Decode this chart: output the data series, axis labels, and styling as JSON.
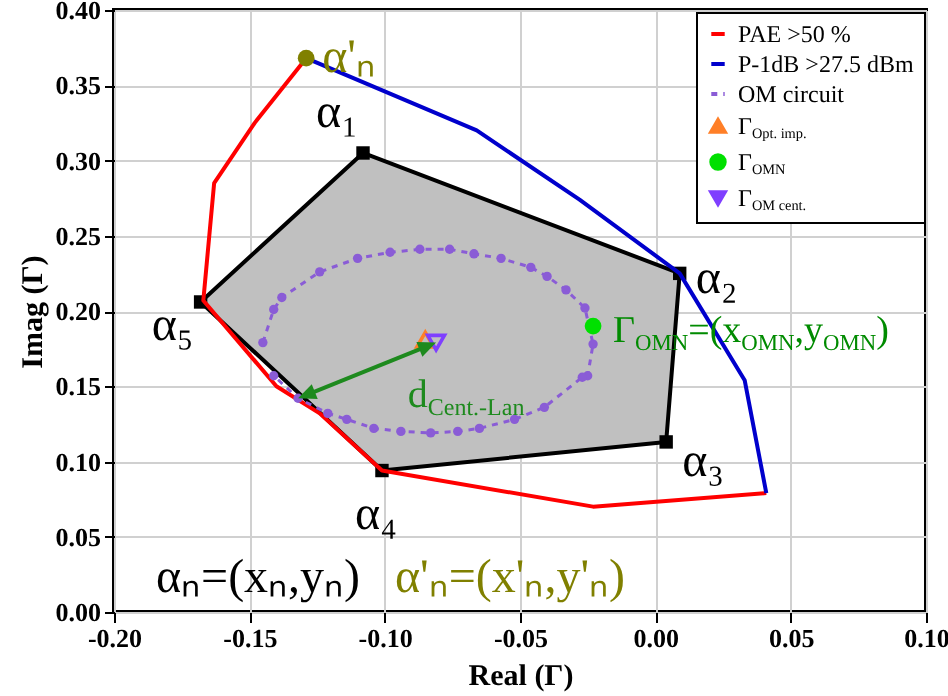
{
  "chart_data": {
    "type": "line",
    "xlabel": "Real (Γ)",
    "ylabel": "Imag (Γ)",
    "xlim": [
      -0.2,
      0.1
    ],
    "ylim": [
      0,
      0.4
    ],
    "xticks": [
      {
        "value": -0.2,
        "label": "-0.20"
      },
      {
        "value": -0.15,
        "label": "-0.15"
      },
      {
        "value": -0.1,
        "label": "-0.10"
      },
      {
        "value": -0.05,
        "label": "-0.05"
      },
      {
        "value": 0,
        "label": "0.00"
      },
      {
        "value": 0.05,
        "label": "0.05"
      },
      {
        "value": 0.1,
        "label": "0.10"
      }
    ],
    "yticks": [
      {
        "value": 0,
        "label": "0.00"
      },
      {
        "value": 0.05,
        "label": "0.05"
      },
      {
        "value": 0.1,
        "label": "0.10"
      },
      {
        "value": 0.15,
        "label": "0.15"
      },
      {
        "value": 0.2,
        "label": "0.20"
      },
      {
        "value": 0.25,
        "label": "0.25"
      },
      {
        "value": 0.3,
        "label": "0.30"
      },
      {
        "value": 0.35,
        "label": "0.35"
      },
      {
        "value": 0.4,
        "label": "0.40"
      }
    ],
    "grid": true,
    "legend": "top right",
    "series": [
      {
        "type": "area",
        "color": "#c0c0c0",
        "marker": "square",
        "x": [
          -0.108,
          0.009,
          0.004,
          -0.101,
          -0.168
        ],
        "values": [
          0.305,
          0.225,
          0.113,
          0.094,
          0.206
        ]
      },
      {
        "name": "PAE >50 %",
        "color": "#ff0000",
        "x": [
          -0.129,
          -0.148,
          -0.163,
          -0.167,
          -0.14,
          -0.124,
          -0.101,
          -0.023,
          0.041
        ],
        "values": [
          0.368,
          0.325,
          0.285,
          0.207,
          0.15,
          0.132,
          0.094,
          0.07,
          0.079
        ]
      },
      {
        "name": "P-1dB >27.5 dBm",
        "color": "#0000cc",
        "x": [
          -0.129,
          -0.066,
          -0.028,
          0.009,
          0.033,
          0.041
        ],
        "values": [
          0.368,
          0.32,
          0.274,
          0.225,
          0.154,
          0.079
        ]
      },
      {
        "name": "OM circuit",
        "color": "#8a5cd6",
        "marker": "circle",
        "line_style": "dotted",
        "x": [
          -0.145,
          -0.141,
          -0.138,
          -0.124,
          -0.11,
          -0.098,
          -0.087,
          -0.076,
          -0.067,
          -0.057,
          -0.046,
          -0.04,
          -0.033,
          -0.026,
          -0.023,
          -0.025,
          -0.027,
          -0.041,
          -0.052,
          -0.065,
          -0.073,
          -0.083,
          -0.094,
          -0.104,
          -0.114,
          -0.121,
          -0.132,
          -0.141
        ],
        "values": [
          0.179,
          0.201,
          0.209,
          0.226,
          0.235,
          0.239,
          0.241,
          0.241,
          0.238,
          0.235,
          0.229,
          0.223,
          0.214,
          0.202,
          0.178,
          0.157,
          0.156,
          0.136,
          0.128,
          0.122,
          0.12,
          0.119,
          0.12,
          0.122,
          0.128,
          0.132,
          0.142,
          0.157
        ]
      },
      {
        "type": "scatter",
        "name": "Γ$_{Opt. imp.}$",
        "color": "#ff7f27",
        "marker": "triangle",
        "x": [
          -0.085
        ],
        "values": [
          0.181
        ]
      },
      {
        "type": "scatter",
        "name": "Γ$_{OMN}$",
        "color": "#00e000",
        "marker": "circle",
        "x": [
          -0.023
        ],
        "values": [
          0.19
        ]
      },
      {
        "type": "scatter",
        "name": "Γ$_{OM cent.}$",
        "color": "#7f3fff",
        "marker": "triangle-down",
        "x": [
          -0.081
        ],
        "values": [
          0.179
        ]
      },
      {
        "type": "scatter",
        "color": "#808000",
        "marker": "circle",
        "x": [
          -0.129
        ],
        "values": [
          0.368
        ]
      }
    ],
    "annotations": [
      {
        "text": "α₁",
        "x": -0.108,
        "y": 0.305
      },
      {
        "text": "α₂",
        "x": 0.009,
        "y": 0.225
      },
      {
        "text": "α₃",
        "x": 0.004,
        "y": 0.113
      },
      {
        "text": "α₄",
        "x": -0.101,
        "y": 0.094
      },
      {
        "text": "α₅",
        "x": -0.168,
        "y": 0.206
      },
      {
        "text": "α'ₙ",
        "x": -0.129,
        "y": 0.368
      },
      {
        "text": "Γ$_{OMN}$=(x$_{OMN}$,y$_{OMN}$)",
        "x": -0.023,
        "y": 0.19
      },
      {
        "text": "d$_{Cent.-Lan}$",
        "x": -0.081,
        "y": 0.179
      },
      "αₙ=(xₙ,yₙ)",
      "α'ₙ=(x'ₙ,y'ₙ)"
    ]
  }
}
